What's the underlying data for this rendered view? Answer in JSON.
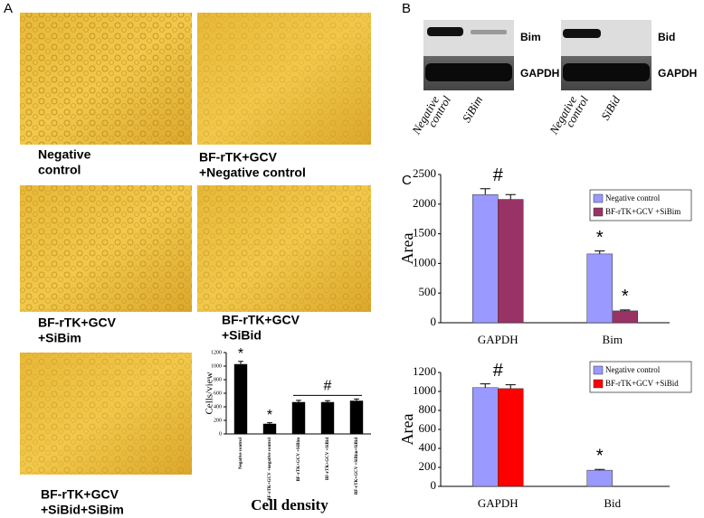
{
  "panels": {
    "a": "A",
    "b": "B",
    "c": "C"
  },
  "captions": [
    [
      "Negative",
      "control"
    ],
    [
      "BF-rTK+GCV",
      "+Negative control"
    ],
    [
      "BF-rTK+GCV",
      "+SiBim"
    ],
    [
      "BF-rTK+GCV",
      "+SiBid"
    ],
    [
      "BF-rTK+GCV",
      "+SiBid+SiBim"
    ]
  ],
  "density_title": "Cell density",
  "blots": [
    {
      "bands": [
        "Bim",
        "GAPDH"
      ],
      "lanes": [
        [
          "Negative",
          "control"
        ],
        [
          "SiBim"
        ]
      ]
    },
    {
      "bands": [
        "Bid",
        "GAPDH"
      ],
      "lanes": [
        [
          "Negative",
          "control"
        ],
        [
          "SiBid"
        ]
      ]
    }
  ],
  "chart_data": [
    {
      "type": "bar",
      "ylabel": "Cells/view",
      "categories": [
        "Negative control",
        "BF-rTK+GCV +negative control",
        "BF-rTK+GCV +SiBim",
        "BF-rTK+GCV +SiBid",
        "BF-rTK+GCV +SiBim+SiBid"
      ],
      "values": [
        1030,
        150,
        470,
        470,
        490
      ],
      "errors": [
        40,
        15,
        25,
        20,
        25
      ],
      "color": "#000000",
      "ylim": [
        0,
        1200
      ],
      "yticks": [
        0,
        200,
        400,
        600,
        800,
        1000,
        1200
      ],
      "annotations": [
        "*",
        "*",
        "#"
      ]
    },
    {
      "type": "bar",
      "ylabel": "Area",
      "categories": [
        "GAPDH",
        "Bim"
      ],
      "series": [
        {
          "name": "Negative control",
          "color": "#9999ff",
          "values": [
            2160,
            1160
          ],
          "errors": [
            100,
            50
          ]
        },
        {
          "name": "BF-rTK+GCV +SiBim",
          "color": "#993366",
          "values": [
            2080,
            200
          ],
          "errors": [
            80,
            15
          ]
        }
      ],
      "ylim": [
        0,
        2500
      ],
      "yticks": [
        0,
        500,
        1000,
        1500,
        2000,
        2500
      ],
      "annotations": [
        "#",
        "*",
        "*"
      ]
    },
    {
      "type": "bar",
      "ylabel": "Area",
      "categories": [
        "GAPDH",
        "Bid"
      ],
      "series": [
        {
          "name": "Negative control",
          "color": "#9999ff",
          "values": [
            1040,
            170
          ],
          "errors": [
            40,
            8
          ]
        },
        {
          "name": "BF-rTK+GCV +SiBid",
          "color": "#ff0000",
          "values": [
            1030,
            0
          ],
          "errors": [
            40,
            0
          ]
        }
      ],
      "ylim": [
        0,
        1200
      ],
      "yticks": [
        0,
        200,
        400,
        600,
        800,
        1000,
        1200
      ],
      "annotations": [
        "#",
        "*"
      ]
    }
  ]
}
